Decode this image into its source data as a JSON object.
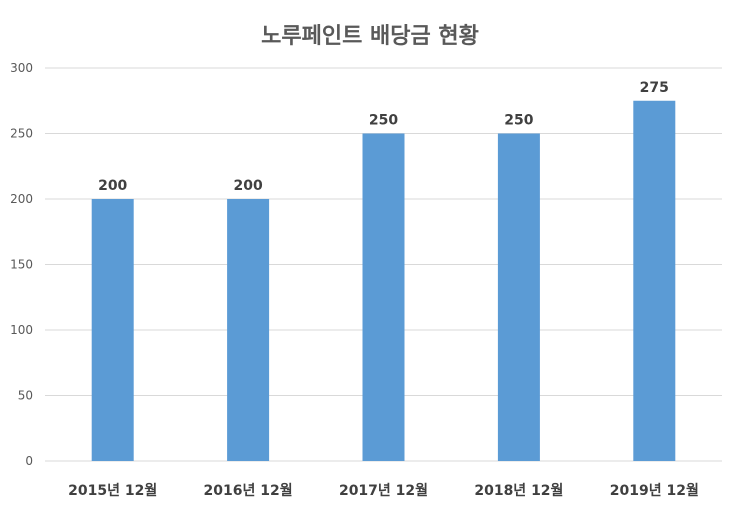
{
  "chart_data": {
    "type": "bar",
    "title": "노루페인트 배당금 현황",
    "categories": [
      "2015년 12월",
      "2016년 12월",
      "2017년 12월",
      "2018년 12월",
      "2019년 12월"
    ],
    "values": [
      200,
      200,
      250,
      250,
      275
    ],
    "data_labels": [
      "200",
      "200",
      "250",
      "250",
      "275"
    ],
    "yticks": [
      "0",
      "50",
      "100",
      "150",
      "200",
      "250",
      "300"
    ],
    "ylim": [
      0,
      300
    ],
    "grid": true,
    "bar_color": "#5B9BD5",
    "grid_color": "#D9D9D9"
  }
}
